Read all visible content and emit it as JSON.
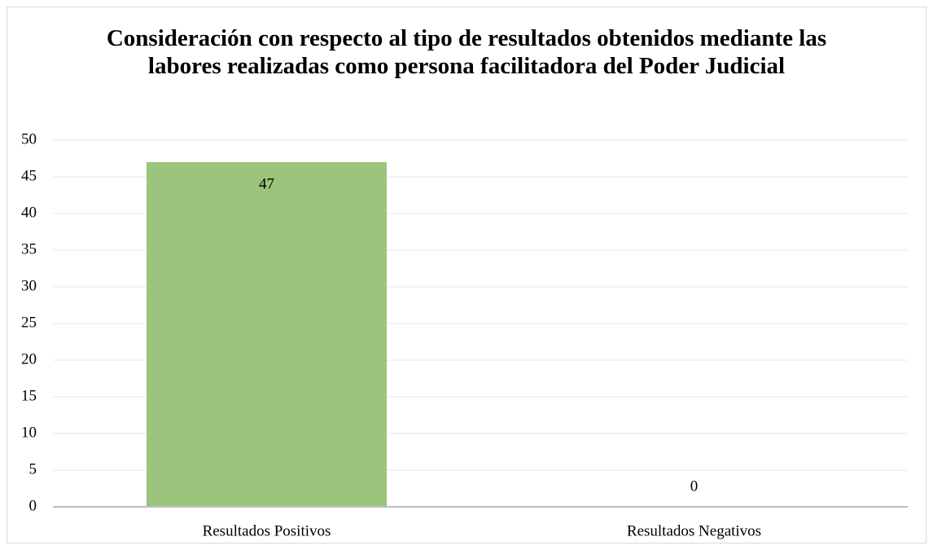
{
  "chart_data": {
    "type": "bar",
    "title": "Consideración con respecto al tipo de resultados obtenidos mediante las labores realizadas como persona facilitadora del Poder Judicial",
    "categories": [
      "Resultados Positivos",
      "Resultados Negativos"
    ],
    "values": [
      47,
      0
    ],
    "color": "#9bc47c",
    "ylim": [
      0,
      50
    ],
    "yticks": [
      0,
      5,
      10,
      15,
      20,
      25,
      30,
      35,
      40,
      45,
      50
    ],
    "grid": true
  }
}
